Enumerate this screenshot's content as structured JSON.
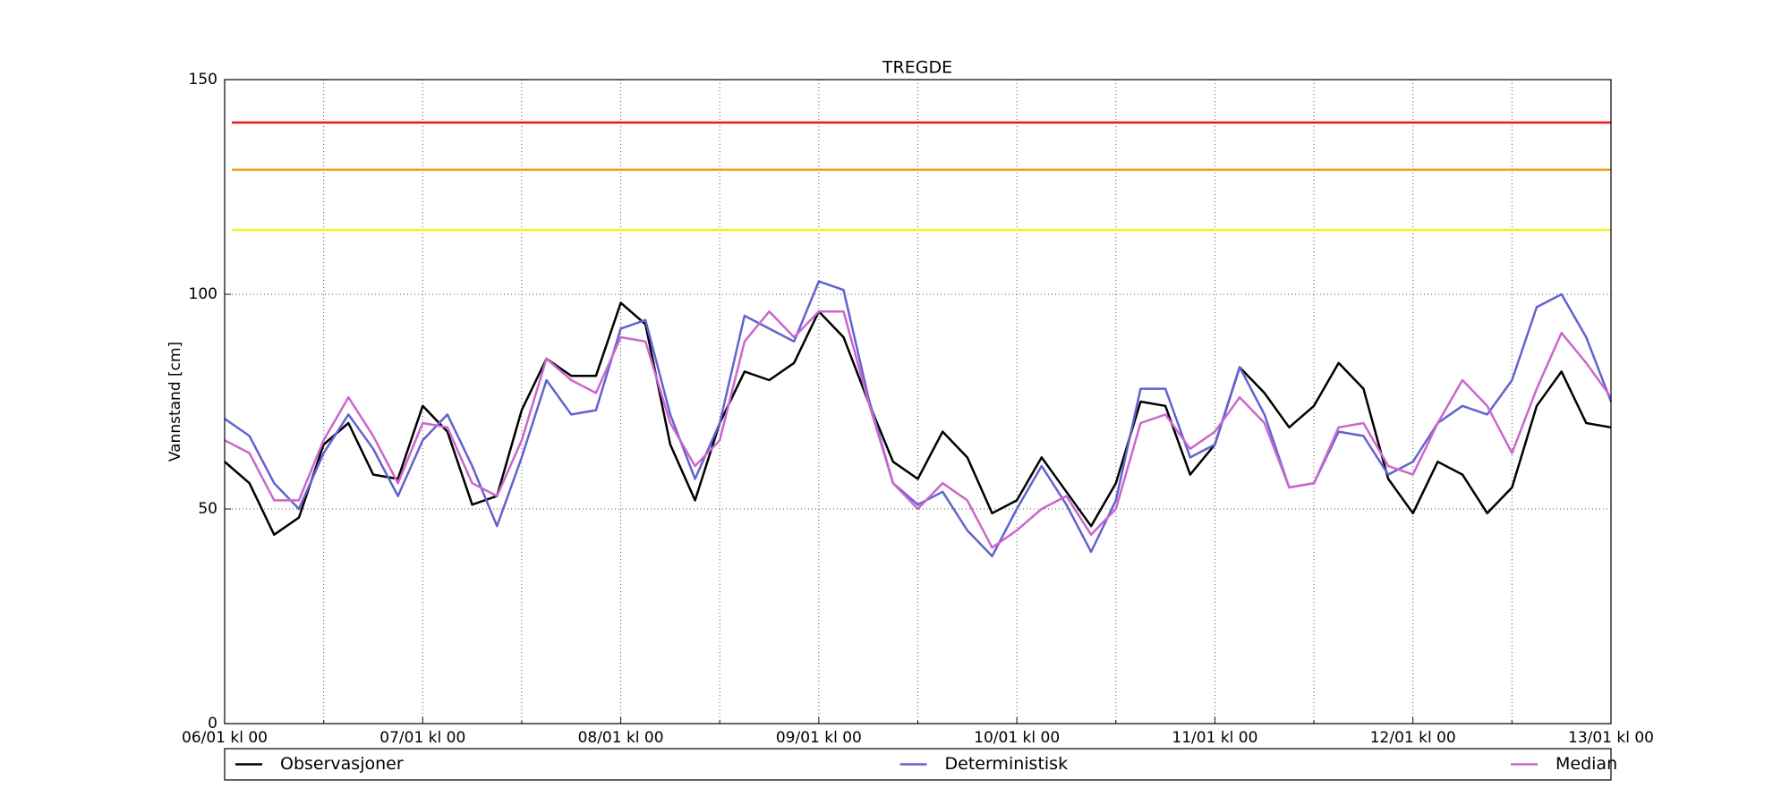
{
  "chart_data": {
    "type": "line",
    "title": "TREGDE",
    "ylabel": "Vannstand [cm]",
    "x": [
      0,
      3,
      6,
      9,
      12,
      15,
      18,
      21,
      24,
      27,
      30,
      33,
      36,
      39,
      42,
      45,
      48,
      51,
      54,
      57,
      60,
      63,
      66,
      69,
      72,
      75,
      78,
      81,
      84,
      87,
      90,
      93,
      96,
      99,
      102,
      105,
      108,
      111,
      114,
      117,
      120,
      123,
      126,
      129,
      132,
      135,
      138,
      141,
      144,
      147,
      150,
      153,
      156,
      159,
      162,
      165,
      168
    ],
    "xlim": [
      0,
      168
    ],
    "xticks": [
      {
        "value": 0,
        "label": "06/01 kl 00"
      },
      {
        "value": 24,
        "label": "07/01 kl 00"
      },
      {
        "value": 48,
        "label": "08/01 kl 00"
      },
      {
        "value": 72,
        "label": "09/01 kl 00"
      },
      {
        "value": 96,
        "label": "10/01 kl 00"
      },
      {
        "value": 120,
        "label": "11/01 kl 00"
      },
      {
        "value": 144,
        "label": "12/01 kl 00"
      },
      {
        "value": 168,
        "label": "13/01 kl 00"
      }
    ],
    "xminorticks": [
      12,
      36,
      60,
      84,
      108,
      132,
      156
    ],
    "ylim": [
      0,
      150
    ],
    "yticks": [
      0,
      50,
      100,
      150
    ],
    "grid": true,
    "legend": "below",
    "thresholds": [
      {
        "value": 140,
        "color": "#e8171b"
      },
      {
        "value": 129,
        "color": "#f0a020"
      },
      {
        "value": 115,
        "color": "#f2f21e"
      }
    ],
    "series": [
      {
        "name": "Observasjoner",
        "color": "#000000",
        "values": [
          61,
          56,
          44,
          48,
          65,
          70,
          58,
          57,
          74,
          68,
          51,
          53,
          73,
          85,
          81,
          81,
          98,
          93,
          65,
          52,
          70,
          82,
          80,
          84,
          96,
          90,
          75,
          61,
          57,
          68,
          62,
          49,
          52,
          62,
          54,
          46,
          56,
          75,
          74,
          58,
          65,
          83,
          77,
          69,
          74,
          84,
          78,
          57,
          49,
          61,
          58,
          49,
          55,
          74,
          82,
          70,
          69
        ]
      },
      {
        "name": "Deterministisk",
        "color": "#6262d0",
        "values": [
          71,
          67,
          56,
          50,
          63,
          72,
          64,
          53,
          66,
          72,
          60,
          46,
          62,
          80,
          72,
          73,
          92,
          94,
          72,
          57,
          70,
          95,
          92,
          89,
          103,
          101,
          76,
          56,
          51,
          54,
          45,
          39,
          50,
          60,
          51,
          40,
          52,
          78,
          78,
          62,
          65,
          83,
          72,
          55,
          56,
          68,
          67,
          58,
          61,
          70,
          74,
          72,
          80,
          97,
          100,
          90,
          75
        ]
      },
      {
        "name": "Median",
        "color": "#cc66cc",
        "values": [
          66,
          63,
          52,
          52,
          66,
          76,
          67,
          56,
          70,
          69,
          56,
          53,
          66,
          85,
          80,
          77,
          90,
          89,
          70,
          60,
          66,
          89,
          96,
          90,
          96,
          96,
          75,
          56,
          50,
          56,
          52,
          41,
          45,
          50,
          53,
          44,
          50,
          70,
          72,
          64,
          68,
          76,
          70,
          55,
          56,
          69,
          70,
          60,
          58,
          70,
          80,
          74,
          63,
          78,
          91,
          84,
          76
        ]
      }
    ]
  }
}
